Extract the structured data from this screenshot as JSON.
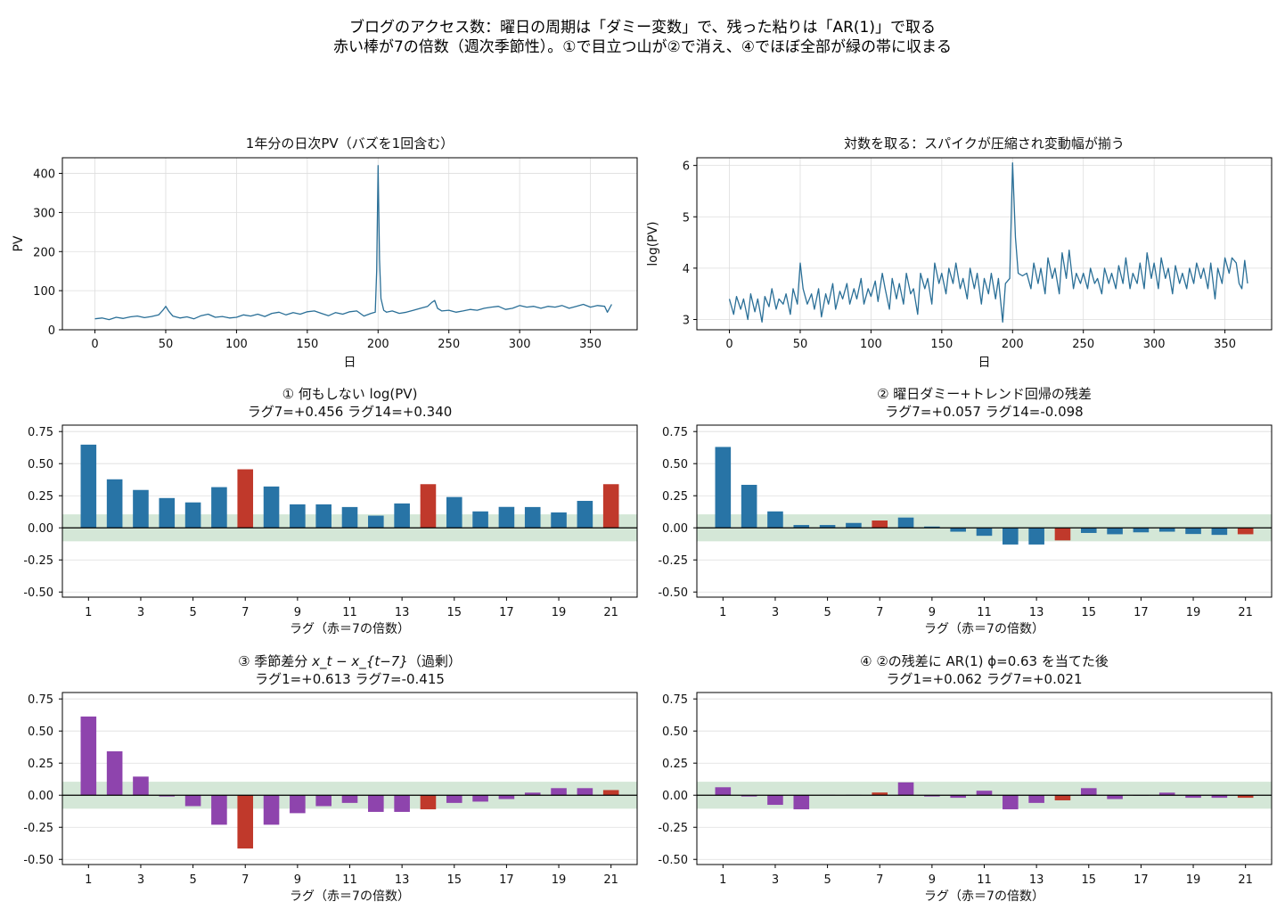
{
  "figure": {
    "suptitle_line1": "ブログのアクセス数：曜日の周期は「ダミー変数」で、残った粘りは「AR(1)」で取る",
    "suptitle_line2": "赤い棒が7の倍数（週次季節性）。①で目立つ山が②で消え、④でほぼ全部が緑の帯に収まる"
  },
  "colors": {
    "line": "#2a6f97",
    "bar_blue": "#2874a6",
    "bar_teal": "#1f6f8b",
    "bar_purple": "#8e44ad",
    "bar_red": "#c0392b",
    "band": "#a9cfb0",
    "grid": "#dddddd",
    "axis": "#000000"
  },
  "chart_data": [
    {
      "id": "raw",
      "type": "line",
      "title": "1年分の日次PV（バズを1回含む）",
      "xlabel": "日",
      "ylabel": "PV",
      "xlim": [
        -23,
        383
      ],
      "ylim": [
        0,
        440
      ],
      "xticks": [
        "0",
        "50",
        "100",
        "150",
        "200",
        "250",
        "300",
        "350"
      ],
      "yticks": [
        "0",
        "100",
        "200",
        "300",
        "400"
      ],
      "grid": true,
      "series": [
        {
          "x": [
            0,
            5,
            10,
            15,
            20,
            25,
            30,
            35,
            40,
            45,
            48,
            50,
            52,
            55,
            60,
            65,
            70,
            75,
            80,
            85,
            90,
            95,
            100,
            105,
            110,
            115,
            120,
            125,
            130,
            135,
            140,
            145,
            150,
            155,
            160,
            165,
            170,
            175,
            180,
            185,
            190,
            195,
            198,
            199,
            200,
            201,
            202,
            204,
            206,
            210,
            215,
            220,
            225,
            230,
            235,
            238,
            240,
            242,
            245,
            250,
            255,
            260,
            265,
            270,
            275,
            280,
            285,
            290,
            295,
            300,
            305,
            310,
            315,
            320,
            325,
            330,
            335,
            340,
            345,
            350,
            355,
            360,
            362,
            365
          ],
          "y": [
            28,
            30,
            26,
            32,
            29,
            33,
            35,
            31,
            34,
            38,
            50,
            60,
            48,
            35,
            30,
            33,
            28,
            36,
            40,
            32,
            34,
            30,
            32,
            38,
            35,
            40,
            34,
            42,
            45,
            38,
            44,
            40,
            46,
            48,
            42,
            36,
            44,
            40,
            46,
            48,
            35,
            42,
            45,
            150,
            420,
            180,
            80,
            50,
            45,
            48,
            42,
            45,
            50,
            55,
            60,
            70,
            75,
            55,
            48,
            50,
            45,
            48,
            52,
            50,
            55,
            58,
            60,
            52,
            55,
            62,
            58,
            60,
            55,
            60,
            58,
            62,
            55,
            60,
            65,
            58,
            62,
            60,
            45,
            65
          ]
        }
      ]
    },
    {
      "id": "log",
      "type": "line",
      "title": "対数を取る：スパイクが圧縮され変動幅が揃う",
      "xlabel": "日",
      "ylabel": "log(PV)",
      "xlim": [
        -23,
        383
      ],
      "ylim": [
        2.8,
        6.15
      ],
      "xticks": [
        "0",
        "50",
        "100",
        "150",
        "200",
        "250",
        "300",
        "350"
      ],
      "yticks": [
        "3",
        "4",
        "5",
        "6"
      ],
      "grid": true,
      "series": [
        {
          "x": [
            0,
            3,
            5,
            8,
            10,
            13,
            15,
            18,
            20,
            23,
            25,
            28,
            30,
            33,
            35,
            38,
            40,
            43,
            45,
            48,
            50,
            52,
            55,
            58,
            60,
            63,
            65,
            68,
            70,
            73,
            75,
            78,
            80,
            83,
            85,
            88,
            90,
            93,
            95,
            98,
            100,
            103,
            105,
            108,
            110,
            113,
            115,
            118,
            120,
            123,
            125,
            128,
            130,
            133,
            135,
            138,
            140,
            143,
            145,
            148,
            150,
            153,
            155,
            158,
            160,
            163,
            165,
            168,
            170,
            173,
            175,
            178,
            180,
            183,
            185,
            188,
            190,
            193,
            195,
            198,
            200,
            202,
            204,
            207,
            210,
            213,
            215,
            218,
            220,
            223,
            225,
            228,
            230,
            233,
            235,
            238,
            240,
            243,
            245,
            248,
            250,
            253,
            255,
            258,
            260,
            263,
            265,
            268,
            270,
            273,
            275,
            278,
            280,
            283,
            285,
            288,
            290,
            293,
            295,
            298,
            300,
            303,
            305,
            308,
            310,
            313,
            315,
            318,
            320,
            323,
            325,
            328,
            330,
            333,
            335,
            338,
            340,
            343,
            345,
            348,
            350,
            353,
            355,
            358,
            360,
            362,
            364,
            366
          ],
          "y": [
            3.4,
            3.1,
            3.45,
            3.2,
            3.4,
            3.0,
            3.5,
            3.15,
            3.4,
            2.95,
            3.45,
            3.25,
            3.6,
            3.2,
            3.4,
            3.3,
            3.5,
            3.1,
            3.6,
            3.3,
            4.1,
            3.6,
            3.3,
            3.5,
            3.2,
            3.6,
            3.05,
            3.5,
            3.3,
            3.7,
            3.2,
            3.55,
            3.4,
            3.7,
            3.3,
            3.6,
            3.4,
            3.8,
            3.3,
            3.6,
            3.45,
            3.75,
            3.35,
            3.9,
            3.6,
            3.2,
            3.8,
            3.4,
            3.7,
            3.3,
            3.9,
            3.5,
            3.6,
            3.1,
            3.9,
            3.6,
            3.8,
            3.3,
            4.1,
            3.7,
            3.9,
            3.5,
            4.0,
            3.7,
            4.1,
            3.6,
            3.8,
            3.4,
            4.0,
            3.6,
            3.9,
            3.3,
            3.8,
            3.5,
            3.9,
            3.4,
            3.8,
            2.95,
            3.7,
            3.8,
            6.05,
            4.6,
            3.9,
            3.85,
            3.9,
            3.6,
            4.1,
            3.7,
            4.0,
            3.5,
            4.2,
            3.8,
            4.0,
            3.5,
            4.3,
            3.8,
            4.35,
            3.6,
            3.9,
            3.7,
            3.9,
            3.6,
            4.0,
            3.7,
            3.8,
            3.5,
            4.0,
            3.7,
            3.9,
            3.6,
            4.05,
            3.7,
            4.2,
            3.6,
            3.9,
            3.7,
            4.1,
            3.6,
            4.3,
            3.8,
            4.1,
            3.6,
            4.2,
            3.8,
            4.0,
            3.5,
            4.05,
            3.7,
            3.9,
            3.6,
            4.0,
            3.7,
            4.1,
            3.8,
            4.0,
            3.6,
            4.1,
            3.4,
            4.0,
            3.7,
            4.2,
            3.9,
            4.2,
            4.1,
            3.7,
            3.6,
            4.15,
            3.7
          ]
        }
      ]
    },
    {
      "id": "acf_raw",
      "type": "bar",
      "title_line1": "① 何もしない log(PV)",
      "title_line2": "ラグ7=+0.456  ラグ14=+0.340",
      "xlabel": "ラグ（赤＝7の倍数）",
      "ylim": [
        -0.54,
        0.8
      ],
      "band": 0.105,
      "bar_color": "bar_blue",
      "xticks": [
        "1",
        "3",
        "5",
        "7",
        "9",
        "11",
        "13",
        "15",
        "17",
        "19",
        "21"
      ],
      "yticks": [
        "0.75",
        "0.50",
        "0.25",
        "0.00",
        "-0.25",
        "-0.50"
      ],
      "categories": [
        1,
        2,
        3,
        4,
        5,
        6,
        7,
        8,
        9,
        10,
        11,
        12,
        13,
        14,
        15,
        16,
        17,
        18,
        19,
        20,
        21
      ],
      "values": [
        0.648,
        0.378,
        0.295,
        0.232,
        0.198,
        0.317,
        0.456,
        0.322,
        0.183,
        0.183,
        0.162,
        0.095,
        0.19,
        0.34,
        0.24,
        0.128,
        0.163,
        0.162,
        0.12,
        0.21,
        0.34
      ]
    },
    {
      "id": "acf_dummy",
      "type": "bar",
      "title_line1": "② 曜日ダミー+トレンド回帰の残差",
      "title_line2": "ラグ7=+0.057  ラグ14=-0.098",
      "xlabel": "ラグ（赤＝7の倍数）",
      "ylim": [
        -0.54,
        0.8
      ],
      "band": 0.105,
      "bar_color": "bar_blue",
      "xticks": [
        "1",
        "3",
        "5",
        "7",
        "9",
        "11",
        "13",
        "15",
        "17",
        "19",
        "21"
      ],
      "yticks": [
        "0.75",
        "0.50",
        "0.25",
        "0.00",
        "-0.25",
        "-0.50"
      ],
      "categories": [
        1,
        2,
        3,
        4,
        5,
        6,
        7,
        8,
        9,
        10,
        11,
        12,
        13,
        14,
        15,
        16,
        17,
        18,
        19,
        20,
        21
      ],
      "values": [
        0.63,
        0.335,
        0.128,
        0.022,
        0.022,
        0.038,
        0.057,
        0.08,
        0.01,
        -0.03,
        -0.062,
        -0.13,
        -0.13,
        -0.098,
        -0.04,
        -0.05,
        -0.035,
        -0.03,
        -0.048,
        -0.055,
        -0.05
      ]
    },
    {
      "id": "acf_sdiff",
      "type": "bar",
      "title_prefix": "③ 季節差分 ",
      "title_math": "x_t − x_{t−7}",
      "title_suffix": "（過剰）",
      "title_line2": "ラグ1=+0.613  ラグ7=-0.415",
      "xlabel": "ラグ（赤＝7の倍数）",
      "ylim": [
        -0.54,
        0.8
      ],
      "band": 0.105,
      "bar_color": "bar_purple",
      "xticks": [
        "1",
        "3",
        "5",
        "7",
        "9",
        "11",
        "13",
        "15",
        "17",
        "19",
        "21"
      ],
      "yticks": [
        "0.75",
        "0.50",
        "0.25",
        "0.00",
        "-0.25",
        "-0.50"
      ],
      "categories": [
        1,
        2,
        3,
        4,
        5,
        6,
        7,
        8,
        9,
        10,
        11,
        12,
        13,
        14,
        15,
        16,
        17,
        18,
        19,
        20,
        21
      ],
      "values": [
        0.613,
        0.342,
        0.145,
        -0.01,
        -0.085,
        -0.23,
        -0.415,
        -0.23,
        -0.14,
        -0.085,
        -0.06,
        -0.13,
        -0.13,
        -0.11,
        -0.06,
        -0.05,
        -0.03,
        0.02,
        0.055,
        0.055,
        0.04
      ]
    },
    {
      "id": "acf_ar1",
      "type": "bar",
      "title_line1": "④ ②の残差に AR(1) ϕ=0.63 を当てた後",
      "title_line2": "ラグ1=+0.062  ラグ7=+0.021",
      "xlabel": "ラグ（赤＝7の倍数）",
      "ylim": [
        -0.54,
        0.8
      ],
      "band": 0.105,
      "bar_color": "bar_purple",
      "xticks": [
        "1",
        "3",
        "5",
        "7",
        "9",
        "11",
        "13",
        "15",
        "17",
        "19",
        "21"
      ],
      "yticks": [
        "0.75",
        "0.50",
        "0.25",
        "0.00",
        "-0.25",
        "-0.50"
      ],
      "categories": [
        1,
        2,
        3,
        4,
        5,
        6,
        7,
        8,
        9,
        10,
        11,
        12,
        13,
        14,
        15,
        16,
        17,
        18,
        19,
        20,
        21
      ],
      "values": [
        0.062,
        -0.01,
        -0.075,
        -0.11,
        0.003,
        0.003,
        0.021,
        0.1,
        -0.01,
        -0.02,
        0.035,
        -0.11,
        -0.06,
        -0.04,
        0.055,
        -0.03,
        0.0,
        0.02,
        -0.02,
        -0.02,
        -0.02
      ]
    }
  ]
}
